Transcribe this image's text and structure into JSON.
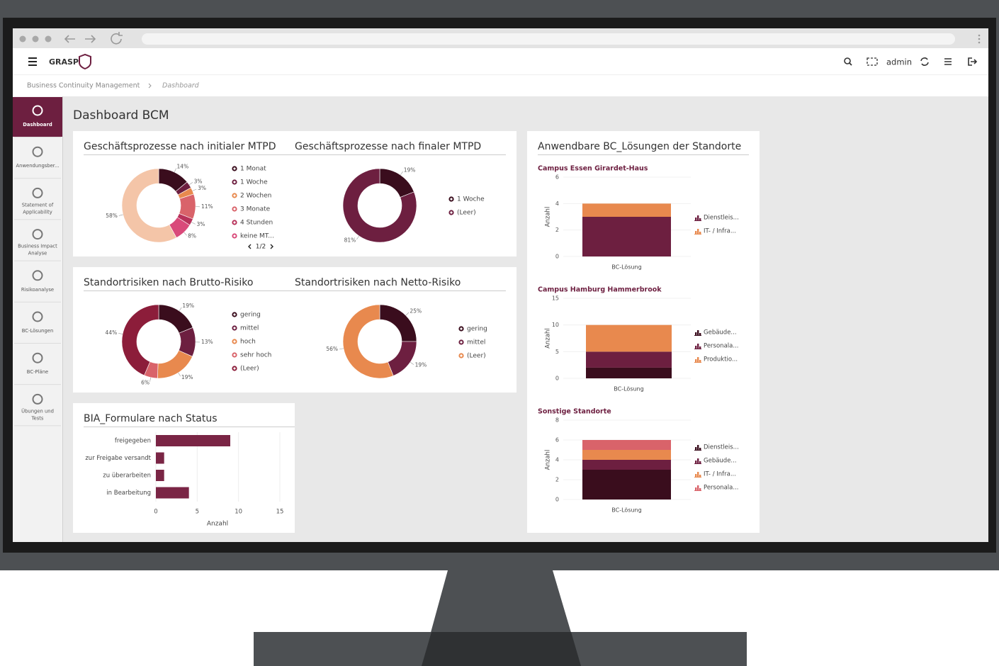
{
  "app": {
    "brand": "GRASP",
    "user": "admin",
    "breadcrumb": [
      "Business Continuity Management",
      "Dashboard"
    ],
    "page_title": "Dashboard BCM",
    "bc_panel_title": "Anwendbare BC_Lösungen der Standorte",
    "sidebar": [
      {
        "label": [
          "Dashboard"
        ],
        "active": true
      },
      {
        "label": [
          "Anwendungsber..."
        ]
      },
      {
        "label": [
          "Statement of",
          "Applicability"
        ]
      },
      {
        "label": [
          "Business Impact",
          "Analyse"
        ]
      },
      {
        "label": [
          "Risikoanalyse"
        ]
      },
      {
        "label": [
          "BC-Lösungen"
        ]
      },
      {
        "label": [
          "BC-Pläne"
        ]
      },
      {
        "label": [
          "Übungen und",
          "Tests"
        ]
      }
    ]
  },
  "chart_data": [
    {
      "type": "donut",
      "title": "Geschäftsprozesse nach initialer MTPD",
      "categories": [
        "1 Monat",
        "1 Woche",
        "2 Wochen",
        "3 Monate",
        "4 Stunden",
        "keine MT...",
        null
      ],
      "values": [
        14,
        3,
        3,
        11,
        3,
        8,
        58
      ],
      "value_labels": [
        "14%",
        "3%",
        "3%",
        "11%",
        "3%",
        "8%",
        "58%"
      ],
      "colors": [
        "#3a0d1d",
        "#6d1f40",
        "#e8894e",
        "#d9636a",
        "#b8325a",
        "#d94a7a",
        "#f4c5a8"
      ],
      "legend_page": "1/2"
    },
    {
      "type": "donut",
      "title": "Geschäftsprozesse nach finaler MTPD",
      "categories": [
        "1 Woche",
        "(Leer)"
      ],
      "values": [
        19,
        81
      ],
      "value_labels": [
        "19%",
        "81%"
      ],
      "colors": [
        "#3a0d1d",
        "#6d1f40"
      ]
    },
    {
      "type": "donut",
      "title": "Standortrisiken nach Brutto-Risiko",
      "categories": [
        "gering",
        "mittel",
        "hoch",
        "sehr hoch",
        "(Leer)"
      ],
      "values": [
        19,
        13,
        19,
        6,
        44
      ],
      "value_labels": [
        "19%",
        "13%",
        "19%",
        "6%",
        "44%"
      ],
      "colors": [
        "#3a0d1d",
        "#6d1f40",
        "#e8894e",
        "#d9636a",
        "#8c1d3a"
      ]
    },
    {
      "type": "donut",
      "title": "Standortrisiken nach Netto-Risiko",
      "categories": [
        "gering",
        "mittel",
        "(Leer)"
      ],
      "values": [
        25,
        19,
        56
      ],
      "value_labels": [
        "25%",
        "19%",
        "56%"
      ],
      "colors": [
        "#3a0d1d",
        "#6d1f40",
        "#e8894e"
      ]
    },
    {
      "type": "hbar",
      "title": "BIA_Formulare nach Status",
      "categories": [
        "freigegeben",
        "zur Freigabe versandt",
        "zu überarbeiten",
        "in Bearbeitung"
      ],
      "values": [
        9,
        1,
        1,
        4
      ],
      "color": "#7a2545",
      "xlim": [
        0,
        15
      ],
      "xticks": [
        0,
        5,
        10,
        15
      ],
      "xlabel": "Anzahl",
      "grid": true
    },
    {
      "type": "stacked_bar",
      "title": "Campus Essen Girardet-Haus",
      "categories": [
        "BC-Lösung"
      ],
      "ylabel": "Anzahl",
      "ylim": [
        0,
        6
      ],
      "yticks": [
        0,
        2,
        4,
        6
      ],
      "grid": true,
      "series": [
        {
          "name": "Dienstleis...",
          "color": "#6d1f40",
          "values": [
            3
          ]
        },
        {
          "name": "IT- / Infra...",
          "color": "#e8894e",
          "values": [
            1
          ]
        }
      ]
    },
    {
      "type": "stacked_bar",
      "title": "Campus Hamburg Hammerbrook",
      "categories": [
        "BC-Lösung"
      ],
      "ylabel": "Anzahl",
      "ylim": [
        0,
        15
      ],
      "yticks": [
        0,
        5,
        10,
        15
      ],
      "grid": true,
      "series": [
        {
          "name": "Gebäude...",
          "color": "#3a0d1d",
          "values": [
            2
          ]
        },
        {
          "name": "Personala...",
          "color": "#6d1f40",
          "values": [
            3
          ]
        },
        {
          "name": "Produktio...",
          "color": "#e8894e",
          "values": [
            5
          ]
        }
      ]
    },
    {
      "type": "stacked_bar",
      "title": "Sonstige Standorte",
      "categories": [
        "BC-Lösung"
      ],
      "ylabel": "Anzahl",
      "ylim": [
        0,
        8
      ],
      "yticks": [
        0,
        2,
        4,
        6,
        8
      ],
      "grid": true,
      "series": [
        {
          "name": "Dienstleis...",
          "color": "#3a0d1d",
          "values": [
            3
          ]
        },
        {
          "name": "Gebäude...",
          "color": "#6d1f40",
          "values": [
            1
          ]
        },
        {
          "name": "IT- / Infra...",
          "color": "#e8894e",
          "values": [
            1
          ]
        },
        {
          "name": "Personala...",
          "color": "#d9636a",
          "values": [
            1
          ]
        }
      ]
    }
  ]
}
